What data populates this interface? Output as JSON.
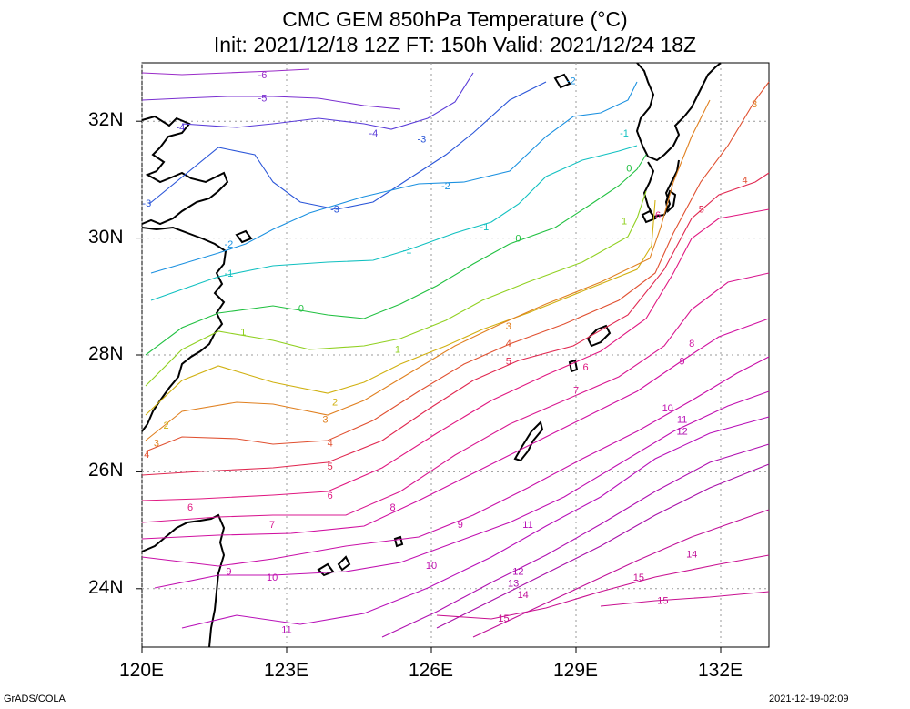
{
  "title": {
    "line1": "CMC GEM 850hPa Temperature (°C)",
    "line2": "Init: 2021/12/18 12Z  FT: 150h  Valid: 2021/12/24 18Z"
  },
  "axes": {
    "lon_range": [
      120,
      133
    ],
    "lat_range": [
      23,
      33
    ],
    "x_ticks": [
      "120E",
      "123E",
      "126E",
      "129E",
      "132E"
    ],
    "y_ticks": [
      "32N",
      "30N",
      "28N",
      "26N",
      "24N"
    ],
    "grid": "dotted"
  },
  "footer": {
    "left": "GrADS/COLA",
    "right": "2021-12-19-02:09"
  },
  "contour_colors": {
    "-6": "#9a2cc8",
    "-5": "#7a2fd0",
    "-4": "#5a3cd8",
    "-3": "#2a55d8",
    "-2": "#1a90e0",
    "-1": "#10c0c0",
    "0": "#20c040",
    "1": "#90d020",
    "2": "#d0b010",
    "3": "#e08020",
    "4": "#e05030",
    "5": "#e02850",
    "6": "#e01880",
    "7": "#d81890",
    "8": "#d010a0",
    "9": "#c810a8",
    "10": "#c010b0",
    "11": "#b810b8",
    "12": "#b010b0",
    "13": "#a810a8",
    "14": "#c01098",
    "15": "#c81090"
  },
  "contour_labels": [
    {
      "text": "-6",
      "lon": 122.5,
      "lat": 32.8
    },
    {
      "text": "-5",
      "lon": 122.5,
      "lat": 32.4
    },
    {
      "text": "-4",
      "lon": 120.8,
      "lat": 31.9
    },
    {
      "text": "-4",
      "lon": 124.8,
      "lat": 31.8
    },
    {
      "text": "-3",
      "lon": 125.8,
      "lat": 31.7
    },
    {
      "text": "-3",
      "lon": 120.1,
      "lat": 30.6
    },
    {
      "text": "-3",
      "lon": 124.0,
      "lat": 30.5
    },
    {
      "text": "-2",
      "lon": 126.3,
      "lat": 30.9
    },
    {
      "text": "-2",
      "lon": 121.8,
      "lat": 29.9
    },
    {
      "text": "-2",
      "lon": 128.9,
      "lat": 32.7
    },
    {
      "text": "-1",
      "lon": 121.8,
      "lat": 29.4
    },
    {
      "text": "-1",
      "lon": 125.5,
      "lat": 29.8
    },
    {
      "text": "-1",
      "lon": 127.1,
      "lat": 30.2
    },
    {
      "text": "-1",
      "lon": 130.0,
      "lat": 31.8
    },
    {
      "text": "0",
      "lon": 123.3,
      "lat": 28.8
    },
    {
      "text": "0",
      "lon": 127.8,
      "lat": 30.0
    },
    {
      "text": "0",
      "lon": 130.1,
      "lat": 31.2
    },
    {
      "text": "1",
      "lon": 122.1,
      "lat": 28.4
    },
    {
      "text": "1",
      "lon": 125.3,
      "lat": 28.1
    },
    {
      "text": "1",
      "lon": 130.0,
      "lat": 30.3
    },
    {
      "text": "2",
      "lon": 120.5,
      "lat": 26.8
    },
    {
      "text": "2",
      "lon": 124.0,
      "lat": 27.2
    },
    {
      "text": "3",
      "lon": 120.3,
      "lat": 26.5
    },
    {
      "text": "3",
      "lon": 123.8,
      "lat": 26.9
    },
    {
      "text": "3",
      "lon": 127.6,
      "lat": 28.5
    },
    {
      "text": "3",
      "lon": 132.7,
      "lat": 32.3
    },
    {
      "text": "4",
      "lon": 120.1,
      "lat": 26.3
    },
    {
      "text": "4",
      "lon": 123.9,
      "lat": 26.5
    },
    {
      "text": "4",
      "lon": 127.6,
      "lat": 28.2
    },
    {
      "text": "4",
      "lon": 132.5,
      "lat": 31.0
    },
    {
      "text": "5",
      "lon": 123.9,
      "lat": 26.1
    },
    {
      "text": "5",
      "lon": 127.6,
      "lat": 27.9
    },
    {
      "text": "5",
      "lon": 131.6,
      "lat": 30.5
    },
    {
      "text": "6",
      "lon": 121.0,
      "lat": 25.4
    },
    {
      "text": "6",
      "lon": 123.9,
      "lat": 25.6
    },
    {
      "text": "6",
      "lon": 129.2,
      "lat": 27.8
    },
    {
      "text": "6",
      "lon": 130.7,
      "lat": 30.4
    },
    {
      "text": "7",
      "lon": 122.7,
      "lat": 25.1
    },
    {
      "text": "7",
      "lon": 129.0,
      "lat": 27.4
    },
    {
      "text": "8",
      "lon": 125.2,
      "lat": 25.4
    },
    {
      "text": "8",
      "lon": 131.4,
      "lat": 28.2
    },
    {
      "text": "9",
      "lon": 121.8,
      "lat": 24.3
    },
    {
      "text": "9",
      "lon": 126.6,
      "lat": 25.1
    },
    {
      "text": "9",
      "lon": 131.2,
      "lat": 27.9
    },
    {
      "text": "10",
      "lon": 122.7,
      "lat": 24.2
    },
    {
      "text": "10",
      "lon": 126.0,
      "lat": 24.4
    },
    {
      "text": "10",
      "lon": 130.9,
      "lat": 27.1
    },
    {
      "text": "11",
      "lon": 123.0,
      "lat": 23.3
    },
    {
      "text": "11",
      "lon": 128.0,
      "lat": 25.1
    },
    {
      "text": "11",
      "lon": 131.2,
      "lat": 26.9
    },
    {
      "text": "12",
      "lon": 131.2,
      "lat": 26.7
    },
    {
      "text": "12",
      "lon": 127.8,
      "lat": 24.3
    },
    {
      "text": "13",
      "lon": 127.7,
      "lat": 24.1
    },
    {
      "text": "14",
      "lon": 127.9,
      "lat": 23.9
    },
    {
      "text": "14",
      "lon": 131.4,
      "lat": 24.6
    },
    {
      "text": "15",
      "lon": 127.5,
      "lat": 23.5
    },
    {
      "text": "15",
      "lon": 130.3,
      "lat": 24.2
    },
    {
      "text": "15",
      "lon": 130.8,
      "lat": 23.8
    }
  ]
}
